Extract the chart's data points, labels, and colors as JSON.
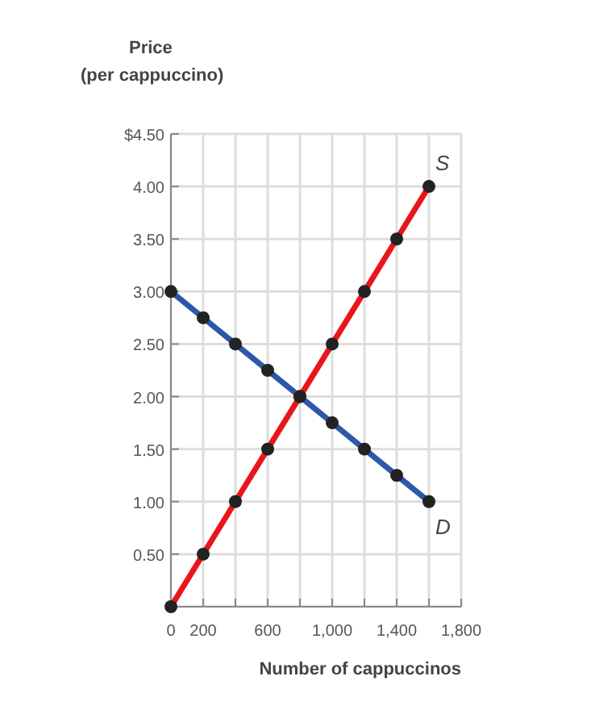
{
  "chart_data": {
    "type": "line",
    "xlabel": "Number of cappuccinos",
    "ylabel": "Price\n(per cappuccino)",
    "x": [
      0,
      200,
      400,
      600,
      800,
      1000,
      1200,
      1400,
      1600
    ],
    "series": [
      {
        "name": "S",
        "color": "#e8151b",
        "values": [
          0,
          0.5,
          1.0,
          1.5,
          2.0,
          2.5,
          3.0,
          3.5,
          4.0
        ]
      },
      {
        "name": "D",
        "color": "#2d58a8",
        "values": [
          3.0,
          2.75,
          2.5,
          2.25,
          2.0,
          1.75,
          1.5,
          1.25,
          1.0
        ]
      }
    ],
    "xlim": [
      0,
      1800
    ],
    "xticks": [
      0,
      200,
      {
        "value": 400,
        "label": null
      },
      600,
      {
        "value": 800,
        "label": null
      },
      {
        "value": 1000,
        "label": "1,000"
      },
      {
        "value": 1200,
        "label": null
      },
      {
        "value": 1400,
        "label": "1,400"
      },
      {
        "value": 1600,
        "label": null
      },
      {
        "value": 1800,
        "label": "1,800"
      }
    ],
    "ylim": [
      0,
      4.5
    ],
    "yticks": [
      {
        "value": 0,
        "label": null
      },
      {
        "value": 0.5,
        "label": "0.50"
      },
      {
        "value": 1,
        "label": "1.00"
      },
      {
        "value": 1.5,
        "label": "1.50"
      },
      {
        "value": 2,
        "label": "2.00"
      },
      {
        "value": 2.5,
        "label": "2.50"
      },
      {
        "value": 3,
        "label": "3.00"
      },
      {
        "value": 3.5,
        "label": "3.50"
      },
      {
        "value": 4,
        "label": "4.00"
      },
      {
        "value": 4.5,
        "label": "$4.50"
      }
    ],
    "grid": true,
    "marker": "circle",
    "line_style": "solid"
  }
}
